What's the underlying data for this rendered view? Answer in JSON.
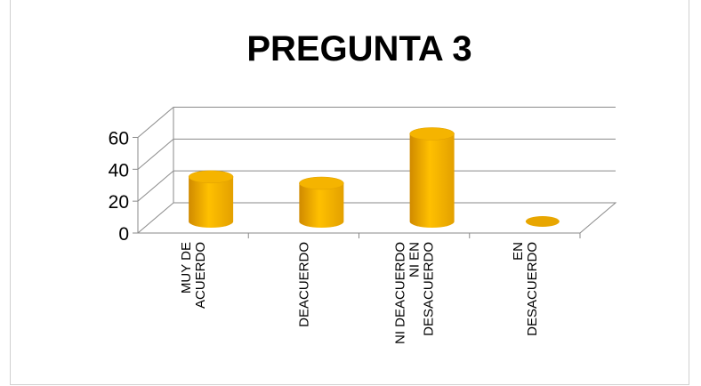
{
  "chart_data": {
    "type": "bar",
    "title": "PREGUNTA 3",
    "categories": [
      [
        "MUY DE",
        "ACUERDO"
      ],
      [
        "DEACUERDO"
      ],
      [
        "NI DEACUERDO",
        "NI EN",
        "DESACUERDO"
      ],
      [
        "EN",
        "DESACUERDO"
      ]
    ],
    "values": [
      28,
      24,
      55,
      0
    ],
    "ylim": [
      0,
      60
    ],
    "yticks": [
      "0",
      "20",
      "40",
      "60"
    ],
    "bar_color": "#FFC000",
    "bar_shade_color": "#D08A00",
    "gridlines": true,
    "style": "3d-cylinder"
  }
}
